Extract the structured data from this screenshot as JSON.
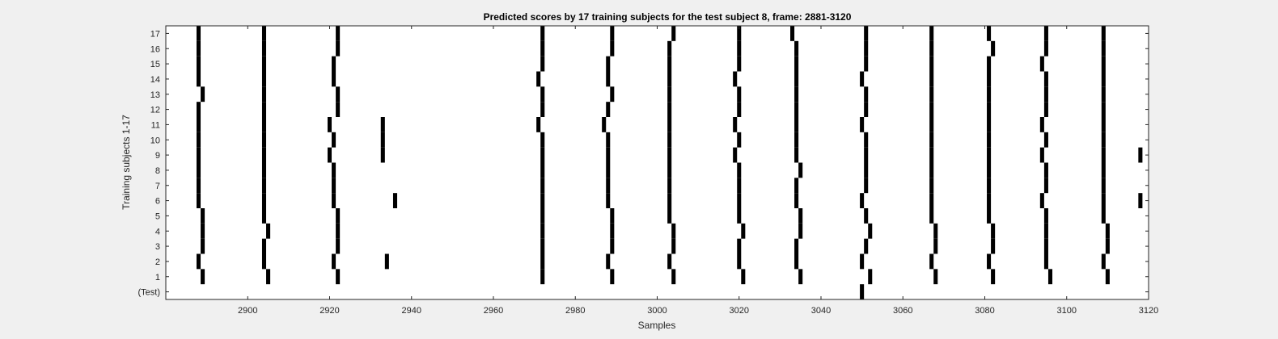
{
  "chart_data": {
    "type": "heatmap",
    "title": "Predicted scores by 17 training subjects for the test subject 8, frame: 2881-3120",
    "xlabel": "Samples",
    "ylabel": "Training subjects 1-17",
    "xlim": [
      2880,
      3120
    ],
    "xticks": [
      2900,
      2920,
      2940,
      2960,
      2980,
      3000,
      3020,
      3040,
      3060,
      3080,
      3100,
      3120
    ],
    "y_tick_labels": [
      "(Test)",
      "1",
      "2",
      "3",
      "4",
      "5",
      "6",
      "7",
      "8",
      "9",
      "10",
      "11",
      "12",
      "13",
      "14",
      "15",
      "16",
      "17"
    ],
    "grid": false,
    "colors": {
      "mark": "#000000",
      "background": "#ffffff"
    },
    "series": [
      {
        "row": "(Test)",
        "samples": [
          3050
        ]
      },
      {
        "row": "1",
        "samples": [
          2889,
          2905,
          2922,
          2972,
          2989,
          3004,
          3021,
          3035,
          3052,
          3068,
          3082,
          3096,
          3110
        ]
      },
      {
        "row": "2",
        "samples": [
          2888,
          2904,
          2921,
          2934,
          2972,
          2988,
          3003,
          3020,
          3034,
          3050,
          3067,
          3081,
          3095,
          3109
        ]
      },
      {
        "row": "3",
        "samples": [
          2889,
          2904,
          2922,
          2972,
          2989,
          3004,
          3020,
          3034,
          3051,
          3068,
          3082,
          3095,
          3110
        ]
      },
      {
        "row": "4",
        "samples": [
          2889,
          2905,
          2922,
          2972,
          2989,
          3004,
          3021,
          3035,
          3052,
          3068,
          3082,
          3095,
          3110
        ]
      },
      {
        "row": "5",
        "samples": [
          2889,
          2904,
          2922,
          2972,
          2989,
          3003,
          3020,
          3035,
          3051,
          3067,
          3081,
          3095,
          3109
        ]
      },
      {
        "row": "6",
        "samples": [
          2888,
          2904,
          2921,
          2936,
          2972,
          2988,
          3003,
          3020,
          3034,
          3050,
          3067,
          3081,
          3094,
          3109,
          3118
        ]
      },
      {
        "row": "7",
        "samples": [
          2888,
          2904,
          2921,
          2972,
          2988,
          3003,
          3020,
          3034,
          3051,
          3067,
          3081,
          3095,
          3109
        ]
      },
      {
        "row": "8",
        "samples": [
          2888,
          2904,
          2921,
          2972,
          2988,
          3003,
          3020,
          3035,
          3051,
          3067,
          3081,
          3095,
          3109
        ]
      },
      {
        "row": "9",
        "samples": [
          2888,
          2904,
          2920,
          2933,
          2972,
          2988,
          3003,
          3019,
          3034,
          3051,
          3067,
          3081,
          3094,
          3109,
          3118
        ]
      },
      {
        "row": "10",
        "samples": [
          2888,
          2904,
          2921,
          2933,
          2972,
          2988,
          3003,
          3020,
          3034,
          3051,
          3067,
          3081,
          3095,
          3109
        ]
      },
      {
        "row": "11",
        "samples": [
          2888,
          2904,
          2920,
          2933,
          2971,
          2987,
          3003,
          3019,
          3034,
          3050,
          3067,
          3081,
          3094,
          3109
        ]
      },
      {
        "row": "12",
        "samples": [
          2888,
          2904,
          2922,
          2972,
          2988,
          3003,
          3020,
          3034,
          3051,
          3067,
          3081,
          3095,
          3109
        ]
      },
      {
        "row": "13",
        "samples": [
          2889,
          2904,
          2922,
          2972,
          2989,
          3003,
          3020,
          3034,
          3051,
          3067,
          3081,
          3095,
          3109
        ]
      },
      {
        "row": "14",
        "samples": [
          2888,
          2904,
          2921,
          2971,
          2988,
          3003,
          3019,
          3034,
          3050,
          3067,
          3081,
          3095,
          3109
        ]
      },
      {
        "row": "15",
        "samples": [
          2888,
          2904,
          2921,
          2972,
          2988,
          3003,
          3020,
          3034,
          3051,
          3067,
          3081,
          3094,
          3109
        ]
      },
      {
        "row": "16",
        "samples": [
          2888,
          2904,
          2922,
          2972,
          2989,
          3003,
          3020,
          3034,
          3051,
          3067,
          3082,
          3095,
          3109
        ]
      },
      {
        "row": "17",
        "samples": [
          2888,
          2904,
          2922,
          2972,
          2989,
          3004,
          3020,
          3033,
          3051,
          3067,
          3081,
          3095,
          3109
        ]
      }
    ]
  }
}
